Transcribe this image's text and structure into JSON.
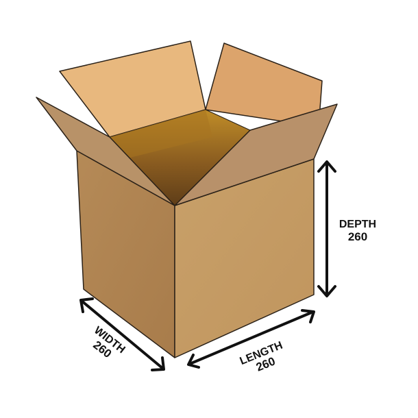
{
  "diagram": {
    "subject": "box-dimensions",
    "colors": {
      "outline": "#2a2118",
      "front_face": "#c49a63",
      "side_face": "#b08352",
      "flap_back_left": "#e8b87e",
      "flap_back_right": "#dca46c",
      "flap_left": "#b89268",
      "flap_right": "#b8916a",
      "interior_light": "#b3801a",
      "interior_dark": "#6e4a1e",
      "arrow": "#111111",
      "text": "#111111"
    },
    "dimensions": {
      "depth": {
        "label": "DEPTH",
        "value": "260"
      },
      "length": {
        "label": "LENGTH",
        "value": "260"
      },
      "width": {
        "label": "WIDTH",
        "value": "260"
      }
    }
  }
}
